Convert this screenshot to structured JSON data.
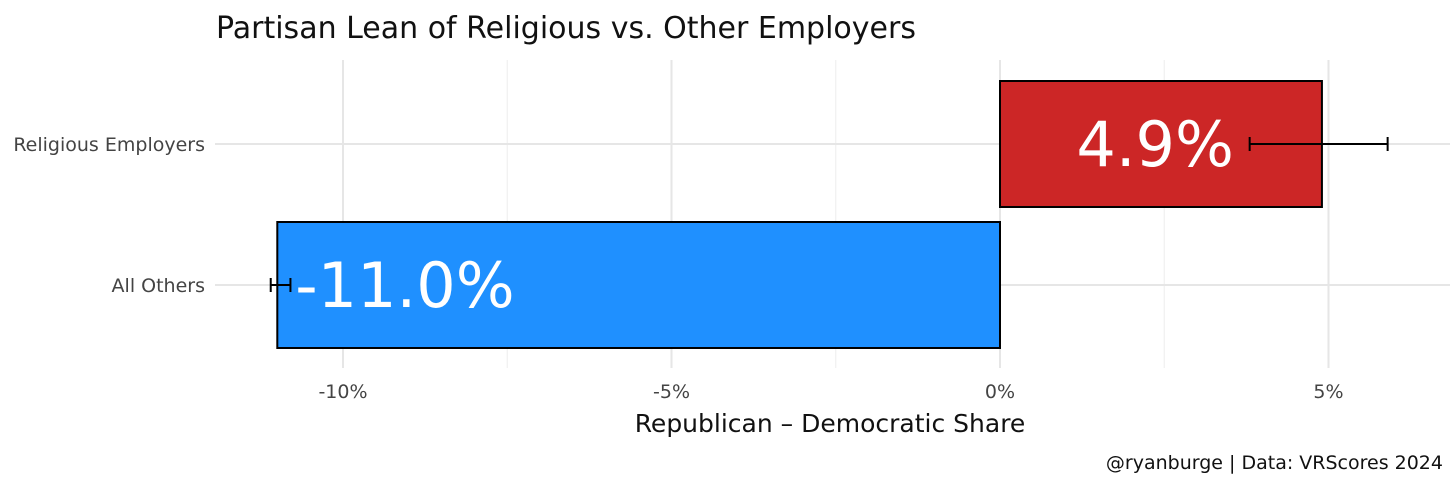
{
  "chart_data": {
    "type": "bar",
    "orientation": "horizontal",
    "title": "Partisan Lean of Religious vs. Other Employers",
    "xlabel": "Republican – Democratic Share",
    "ylabel": "",
    "caption": "@ryanburge | Data: VRScores 2024",
    "categories": [
      "Religious Employers",
      "All Others"
    ],
    "values": [
      4.9,
      -11.0
    ],
    "value_labels": [
      "4.9%",
      "-11.0%"
    ],
    "error_low": [
      3.8,
      -11.1
    ],
    "error_high": [
      5.9,
      -10.8
    ],
    "colors": [
      "#cc2626",
      "#1f90ff"
    ],
    "xlim": [
      -11.5,
      6.5
    ],
    "xticks": [
      -10,
      -5,
      0,
      5
    ],
    "xtick_labels": [
      "-10%",
      "-5%",
      "0%",
      "5%"
    ],
    "grid": true,
    "legend": "none"
  }
}
